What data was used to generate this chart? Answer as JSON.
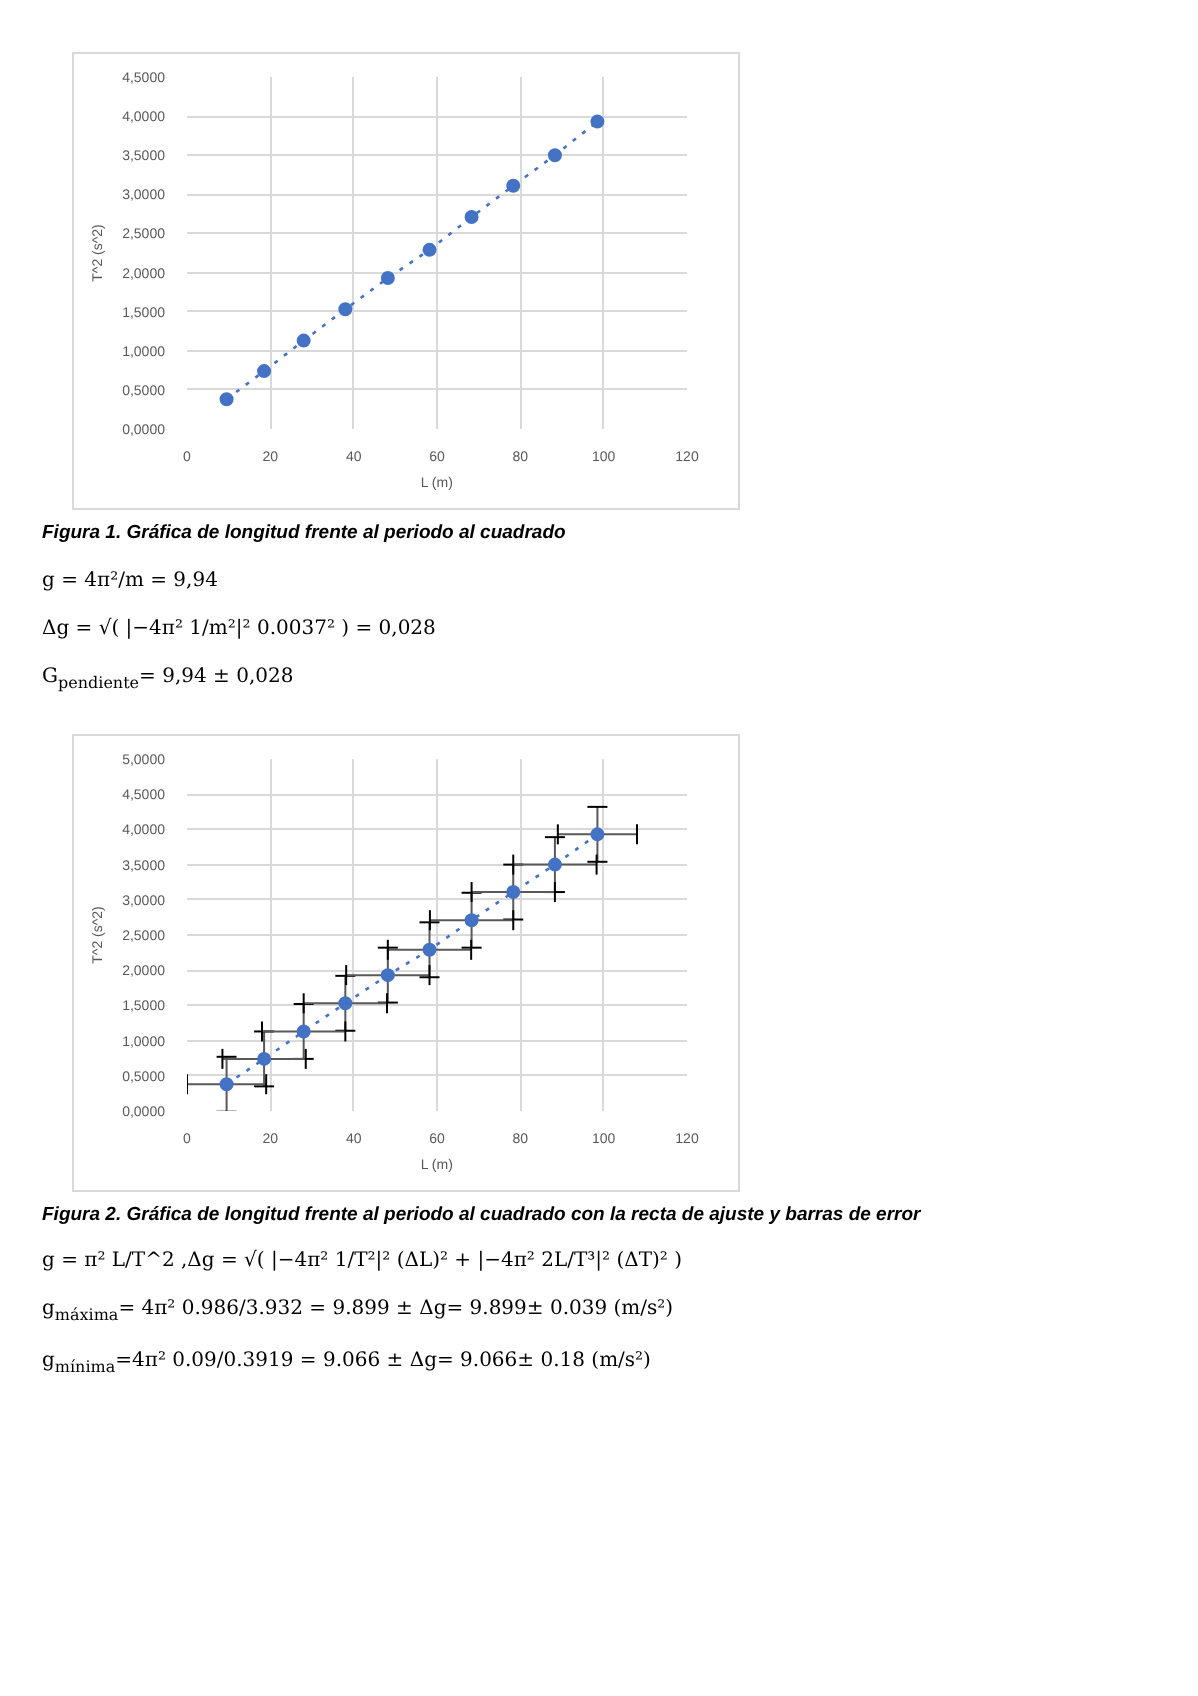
{
  "chart_data": [
    {
      "type": "line",
      "xlabel": "L (m)",
      "ylabel": "T^2 (s^2)",
      "marker": "circle",
      "line_style": "dotted",
      "grid": true,
      "x": [
        9.5,
        18.5,
        28,
        38,
        48.2,
        58.2,
        68.3,
        78.3,
        88.3,
        98.5
      ],
      "series": [
        {
          "color": "#4472c4",
          "values": [
            0.38,
            0.74,
            1.13,
            1.53,
            1.93,
            2.29,
            2.71,
            3.11,
            3.5,
            3.93
          ]
        }
      ],
      "xlim": [
        0,
        120
      ],
      "xticks": [
        0,
        20,
        40,
        60,
        80,
        100,
        120
      ],
      "ylim": [
        0,
        4.5
      ],
      "yticks": [
        {
          "value": 0,
          "label": "0,0000"
        },
        {
          "value": 0.5,
          "label": "0,5000"
        },
        {
          "value": 1,
          "label": "1,0000"
        },
        {
          "value": 1.5,
          "label": "1,5000"
        },
        {
          "value": 2,
          "label": "2,0000"
        },
        {
          "value": 2.5,
          "label": "2,5000"
        },
        {
          "value": 3,
          "label": "3,0000"
        },
        {
          "value": 3.5,
          "label": "3,5000"
        },
        {
          "value": 4,
          "label": "4,0000"
        },
        {
          "value": 4.5,
          "label": "4,5000"
        }
      ],
      "annotations": [
        "Figura 1. Gráfica de longitud frente al periodo al cuadrado",
        "g = 4π²/m = 9,94",
        "Δg = √( |−4π² 1/m²|² 0.0037² ) = 0,028",
        "G$_{pendiente}$= 9,94 ± 0,028"
      ]
    },
    {
      "type": "line",
      "xlabel": "L (m)",
      "ylabel": "T^2 (s^2)",
      "marker": "circle",
      "line_style": "dotted",
      "grid": true,
      "x": [
        9.5,
        18.5,
        28,
        38,
        48.2,
        58.2,
        68.3,
        78.3,
        88.3,
        98.5
      ],
      "series": [
        {
          "color": "#4472c4",
          "values": [
            0.38,
            0.74,
            1.13,
            1.53,
            1.93,
            2.29,
            2.71,
            3.11,
            3.5,
            3.93
          ],
          "errors": [
            0.39,
            0.39,
            0.39,
            0.39,
            0.39,
            0.39,
            0.39,
            0.39,
            0.39,
            0.39
          ],
          "xerrors": [
            9.5,
            10,
            10,
            10,
            10,
            10,
            10,
            10,
            10,
            9.5
          ]
        }
      ],
      "xlim": [
        0,
        120
      ],
      "xticks": [
        0,
        20,
        40,
        60,
        80,
        100,
        120
      ],
      "ylim": [
        0,
        5
      ],
      "yticks": [
        {
          "value": 0,
          "label": "0,0000"
        },
        {
          "value": 0.5,
          "label": "0,5000"
        },
        {
          "value": 1,
          "label": "1,0000"
        },
        {
          "value": 1.5,
          "label": "1,5000"
        },
        {
          "value": 2,
          "label": "2,0000"
        },
        {
          "value": 2.5,
          "label": "2,5000"
        },
        {
          "value": 3,
          "label": "3,0000"
        },
        {
          "value": 3.5,
          "label": "3,5000"
        },
        {
          "value": 4,
          "label": "4,0000"
        },
        {
          "value": 4.5,
          "label": "4,5000"
        },
        {
          "value": 5,
          "label": "5,0000"
        }
      ],
      "annotations": [
        "Figura 2. Gráfica de longitud frente al periodo al cuadrado con la recta de ajuste y barras de error",
        "g = π² L/T^2 ,Δg = √( |−4π² 1/T²|² (ΔL)² + |−4π² 2L/T³|² (ΔT)² )",
        "g$_{máxima}$= 4π² 0.986/3.932 = 9.899 ± Δg= 9.899± 0.039 (m/s²)",
        "g$_{mínima}$=4π² 0.09/0.3919 = 9.066 ± Δg= 9.066± 0.18 (m/s²)"
      ]
    }
  ]
}
